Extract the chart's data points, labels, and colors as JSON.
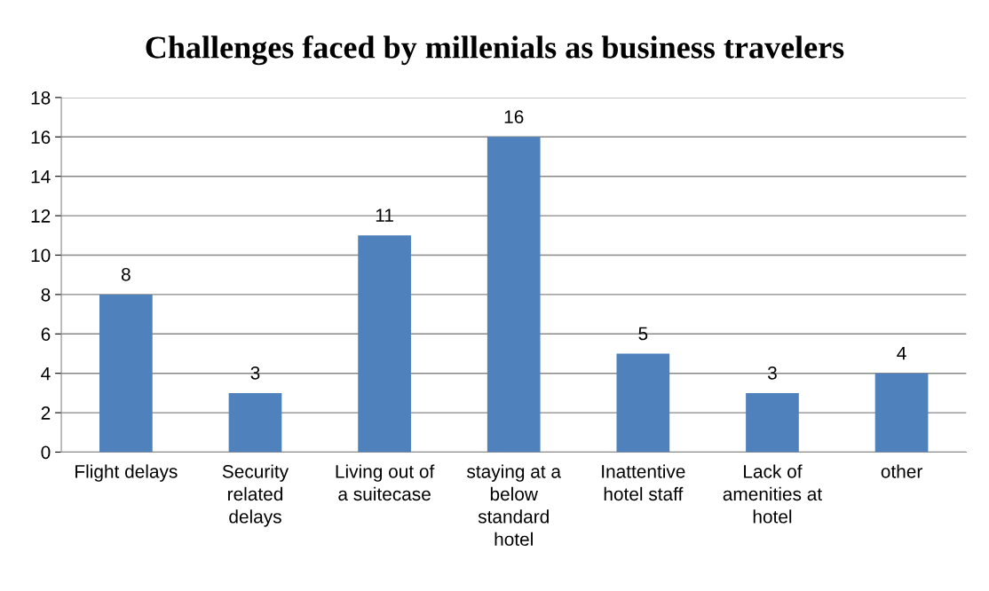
{
  "chart_data": {
    "type": "bar",
    "title": "Challenges faced by millenials as business travelers",
    "categories": [
      "Flight delays",
      "Security related delays",
      "Living out of a suitecase",
      "staying at a below standard hotel",
      "Inattentive hotel staff",
      "Lack of amenities at hotel",
      "other"
    ],
    "values": [
      8,
      3,
      11,
      16,
      5,
      3,
      4
    ],
    "color": "#4f81bd",
    "ylim": [
      0,
      18
    ],
    "yticks": [
      0,
      2,
      4,
      6,
      8,
      10,
      12,
      14,
      16,
      18
    ],
    "grid": "y",
    "data_labels": true
  }
}
